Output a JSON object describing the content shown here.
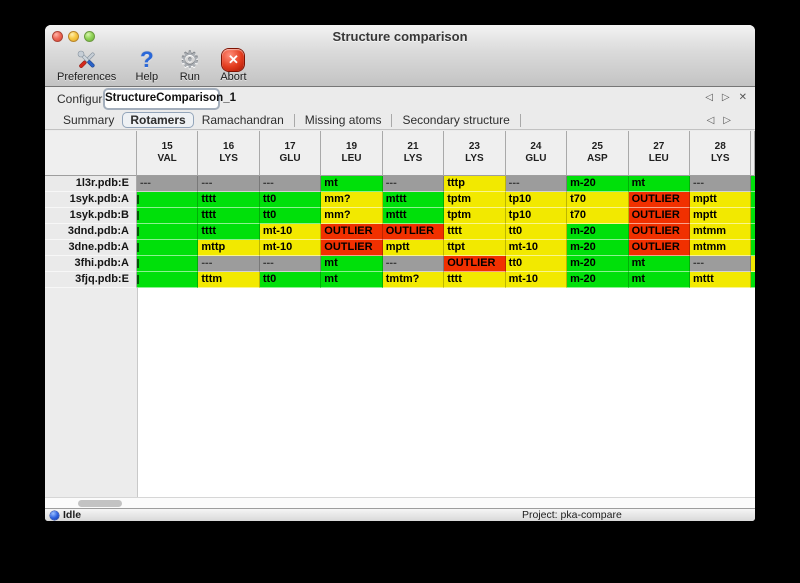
{
  "window": {
    "title": "Structure comparison"
  },
  "toolbar": {
    "items": [
      {
        "label": "Preferences",
        "icon": "tools-icon"
      },
      {
        "label": "Help",
        "icon": "question-mark-icon"
      },
      {
        "label": "Run",
        "icon": "gear-icon"
      },
      {
        "label": "Abort",
        "icon": "stop-x-icon"
      }
    ]
  },
  "glyphs": {
    "prev": "◁",
    "next": "▷",
    "close": "✕",
    "help_q": "?",
    "gear": "⚙"
  },
  "configure": {
    "label": "Configure",
    "value": "StructureComparison_1"
  },
  "tabs": {
    "items": [
      {
        "label": "Summary",
        "selected": false
      },
      {
        "label": "Rotamers",
        "selected": true
      },
      {
        "label": "Ramachandran",
        "selected": false
      },
      {
        "label": "Missing atoms",
        "selected": false
      },
      {
        "label": "Secondary structure",
        "selected": false
      }
    ]
  },
  "colors": {
    "green": "#00e00a",
    "yellow": "#f2e900",
    "red": "#f13000",
    "gray": "#9c9c9c"
  },
  "table": {
    "columns": [
      {
        "num": "15",
        "res": "VAL"
      },
      {
        "num": "16",
        "res": "LYS"
      },
      {
        "num": "17",
        "res": "GLU"
      },
      {
        "num": "19",
        "res": "LEU"
      },
      {
        "num": "21",
        "res": "LYS"
      },
      {
        "num": "23",
        "res": "LYS"
      },
      {
        "num": "24",
        "res": "GLU"
      },
      {
        "num": "25",
        "res": "ASP"
      },
      {
        "num": "27",
        "res": "LEU"
      },
      {
        "num": "28",
        "res": "LYS"
      }
    ],
    "rows": [
      {
        "label": "1l3r.pdb:E",
        "cells": [
          {
            "t": "---",
            "c": "gray"
          },
          {
            "t": "---",
            "c": "gray"
          },
          {
            "t": "---",
            "c": "gray"
          },
          {
            "t": "mt",
            "c": "green"
          },
          {
            "t": "---",
            "c": "gray"
          },
          {
            "t": "tttp",
            "c": "yellow"
          },
          {
            "t": "---",
            "c": "gray"
          },
          {
            "t": "m-20",
            "c": "green"
          },
          {
            "t": "mt",
            "c": "green"
          },
          {
            "t": "---",
            "c": "gray"
          }
        ]
      },
      {
        "label": "1syk.pdb:A",
        "cells": [
          {
            "t": "",
            "c": "green",
            "clipped": true
          },
          {
            "t": "tttt",
            "c": "green"
          },
          {
            "t": "tt0",
            "c": "green"
          },
          {
            "t": "mm?",
            "c": "yellow"
          },
          {
            "t": "mttt",
            "c": "green"
          },
          {
            "t": "tptm",
            "c": "yellow"
          },
          {
            "t": "tp10",
            "c": "yellow"
          },
          {
            "t": "t70",
            "c": "yellow"
          },
          {
            "t": "OUTLIER",
            "c": "red"
          },
          {
            "t": "mptt",
            "c": "yellow"
          }
        ]
      },
      {
        "label": "1syk.pdb:B",
        "cells": [
          {
            "t": "",
            "c": "green",
            "clipped": true
          },
          {
            "t": "tttt",
            "c": "green"
          },
          {
            "t": "tt0",
            "c": "green"
          },
          {
            "t": "mm?",
            "c": "yellow"
          },
          {
            "t": "mttt",
            "c": "green"
          },
          {
            "t": "tptm",
            "c": "yellow"
          },
          {
            "t": "tp10",
            "c": "yellow"
          },
          {
            "t": "t70",
            "c": "yellow"
          },
          {
            "t": "OUTLIER",
            "c": "red"
          },
          {
            "t": "mptt",
            "c": "yellow"
          }
        ]
      },
      {
        "label": "3dnd.pdb:A",
        "cells": [
          {
            "t": "",
            "c": "green",
            "clipped": true
          },
          {
            "t": "tttt",
            "c": "green"
          },
          {
            "t": "mt-10",
            "c": "yellow"
          },
          {
            "t": "OUTLIER",
            "c": "red"
          },
          {
            "t": "OUTLIER",
            "c": "red"
          },
          {
            "t": "tttt",
            "c": "yellow"
          },
          {
            "t": "tt0",
            "c": "yellow"
          },
          {
            "t": "m-20",
            "c": "green"
          },
          {
            "t": "OUTLIER",
            "c": "red"
          },
          {
            "t": "mtmm",
            "c": "yellow"
          }
        ]
      },
      {
        "label": "3dne.pdb:A",
        "cells": [
          {
            "t": "",
            "c": "green",
            "clipped": true
          },
          {
            "t": "mttp",
            "c": "yellow"
          },
          {
            "t": "mt-10",
            "c": "yellow"
          },
          {
            "t": "OUTLIER",
            "c": "red"
          },
          {
            "t": "mptt",
            "c": "yellow"
          },
          {
            "t": "ttpt",
            "c": "yellow"
          },
          {
            "t": "mt-10",
            "c": "yellow"
          },
          {
            "t": "m-20",
            "c": "green"
          },
          {
            "t": "OUTLIER",
            "c": "red"
          },
          {
            "t": "mtmm",
            "c": "yellow"
          }
        ]
      },
      {
        "label": "3fhi.pdb:A",
        "cells": [
          {
            "t": "",
            "c": "green",
            "clipped": true
          },
          {
            "t": "---",
            "c": "gray"
          },
          {
            "t": "---",
            "c": "gray"
          },
          {
            "t": "mt",
            "c": "green"
          },
          {
            "t": "---",
            "c": "gray"
          },
          {
            "t": "OUTLIER",
            "c": "red"
          },
          {
            "t": "tt0",
            "c": "yellow"
          },
          {
            "t": "m-20",
            "c": "green"
          },
          {
            "t": "mt",
            "c": "green"
          },
          {
            "t": "---",
            "c": "gray"
          }
        ]
      },
      {
        "label": "3fjq.pdb:E",
        "cells": [
          {
            "t": "",
            "c": "green",
            "clipped": true
          },
          {
            "t": "tttm",
            "c": "yellow"
          },
          {
            "t": "tt0",
            "c": "green"
          },
          {
            "t": "mt",
            "c": "green"
          },
          {
            "t": "tmtm?",
            "c": "yellow"
          },
          {
            "t": "tttt",
            "c": "yellow"
          },
          {
            "t": "mt-10",
            "c": "yellow"
          },
          {
            "t": "m-20",
            "c": "green"
          },
          {
            "t": "mt",
            "c": "green"
          },
          {
            "t": "mttt",
            "c": "yellow"
          }
        ]
      }
    ],
    "partial_column": [
      "green",
      "green",
      "green",
      "green",
      "green",
      "yellow",
      "green"
    ]
  },
  "scrollbar": {
    "orientation": "horizontal"
  },
  "status": {
    "left": "Idle",
    "right": "Project: pka-compare"
  }
}
